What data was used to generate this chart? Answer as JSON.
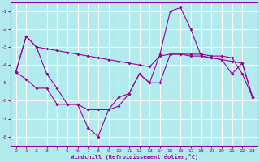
{
  "xlabel": "Windchill (Refroidissement éolien,°C)",
  "background_color": "#b2ebee",
  "grid_color": "#ffffff",
  "line_color": "#990099",
  "xlim": [
    -0.5,
    23.5
  ],
  "ylim": [
    -8.5,
    -0.5
  ],
  "yticks": [
    -8,
    -7,
    -6,
    -5,
    -4,
    -3,
    -2,
    -1
  ],
  "xticks": [
    0,
    1,
    2,
    3,
    4,
    5,
    6,
    7,
    8,
    9,
    10,
    11,
    12,
    13,
    14,
    15,
    16,
    17,
    18,
    19,
    20,
    21,
    22,
    23
  ],
  "series1_x": [
    0,
    1,
    2,
    3,
    4,
    5,
    6,
    7,
    8,
    9,
    10,
    11,
    12,
    13,
    14,
    15,
    16,
    17,
    18,
    19,
    20,
    21,
    22,
    23
  ],
  "series1_y": [
    -4.4,
    -2.4,
    -3.0,
    -3.1,
    -3.2,
    -3.3,
    -3.4,
    -3.5,
    -3.6,
    -3.7,
    -3.8,
    -3.9,
    -4.0,
    -4.1,
    -3.5,
    -3.4,
    -3.4,
    -3.5,
    -3.5,
    -3.6,
    -3.7,
    -3.8,
    -3.9,
    -5.8
  ],
  "series2_x": [
    0,
    1,
    2,
    3,
    4,
    5,
    6,
    7,
    8,
    9,
    10,
    11,
    12,
    13,
    14,
    15,
    16,
    17,
    18,
    19,
    20,
    21,
    22,
    23
  ],
  "series2_y": [
    -4.4,
    -2.4,
    -3.0,
    -4.5,
    -5.3,
    -6.2,
    -6.2,
    -7.5,
    -8.0,
    -6.5,
    -6.3,
    -5.6,
    -4.5,
    -5.0,
    -3.4,
    -1.0,
    -0.8,
    -2.0,
    -3.5,
    -3.6,
    -3.7,
    -4.5,
    -3.9,
    -5.8
  ],
  "series3_x": [
    0,
    1,
    2,
    3,
    4,
    5,
    6,
    7,
    8,
    9,
    10,
    11,
    12,
    13,
    14,
    15,
    16,
    17,
    18,
    19,
    20,
    21,
    22,
    23
  ],
  "series3_y": [
    -4.4,
    -4.8,
    -5.3,
    -5.3,
    -6.2,
    -6.2,
    -6.2,
    -6.5,
    -6.5,
    -6.5,
    -5.8,
    -5.6,
    -4.5,
    -5.0,
    -5.0,
    -3.4,
    -3.4,
    -3.4,
    -3.4,
    -3.5,
    -3.5,
    -3.6,
    -4.5,
    -5.8
  ]
}
